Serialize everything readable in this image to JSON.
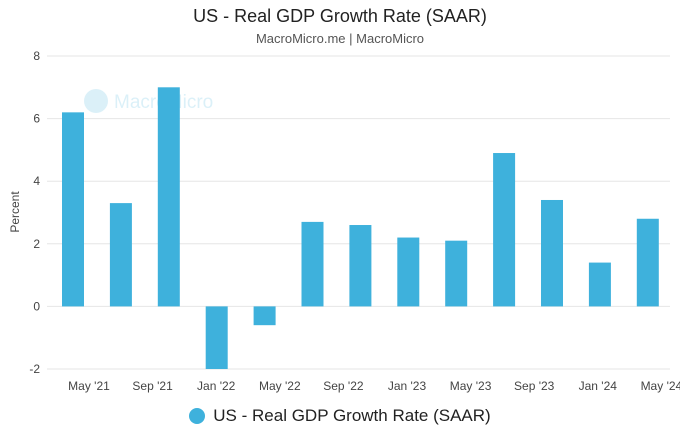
{
  "chart_data": {
    "type": "bar",
    "title": "US - Real GDP Growth Rate (SAAR)",
    "subtitle": "MacroMicro.me | MacroMicro",
    "ylabel": "Percent",
    "xlabel": "",
    "ylim": [
      -2,
      8
    ],
    "yticks": [
      -2,
      0,
      2,
      4,
      6,
      8
    ],
    "x_tick_labels": [
      "May '21",
      "Sep '21",
      "Jan '22",
      "May '22",
      "Sep '22",
      "Jan '23",
      "May '23",
      "Sep '23",
      "Jan '24",
      "May '24"
    ],
    "series": [
      {
        "name": "US - Real GDP Growth Rate (SAAR)",
        "color": "#3EB1DC",
        "values": [
          6.2,
          3.3,
          7.0,
          -2.0,
          -0.6,
          2.7,
          2.6,
          2.2,
          2.1,
          4.9,
          3.4,
          1.4,
          2.8
        ]
      }
    ],
    "grid": true,
    "legend_position": "bottom",
    "watermark": "MacroMicro"
  }
}
